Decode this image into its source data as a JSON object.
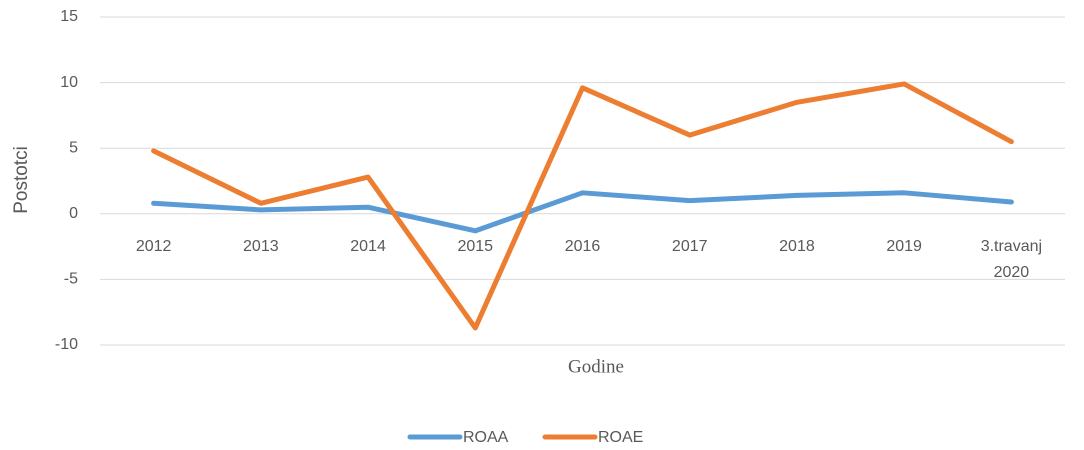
{
  "chart_data": {
    "type": "line",
    "y_label": "Postotci",
    "x_label": "Godine",
    "categories": [
      "2012",
      "2013",
      "2014",
      "2015",
      "2016",
      "2017",
      "2018",
      "2019",
      "3.travanj 2020"
    ],
    "series": [
      {
        "name": "ROAA",
        "color": "#5b9bd5",
        "values": [
          0.8,
          0.3,
          0.5,
          -1.3,
          1.6,
          1.0,
          1.4,
          1.6,
          0.9
        ]
      },
      {
        "name": "ROAE",
        "color": "#ed7d31",
        "values": [
          4.8,
          0.8,
          2.8,
          -8.7,
          9.6,
          6.0,
          8.5,
          9.9,
          5.5
        ]
      }
    ],
    "ylim": [
      -10,
      15
    ],
    "yticks": [
      -10,
      -5,
      0,
      5,
      10,
      15
    ],
    "grid": true,
    "legend": "bottom"
  }
}
